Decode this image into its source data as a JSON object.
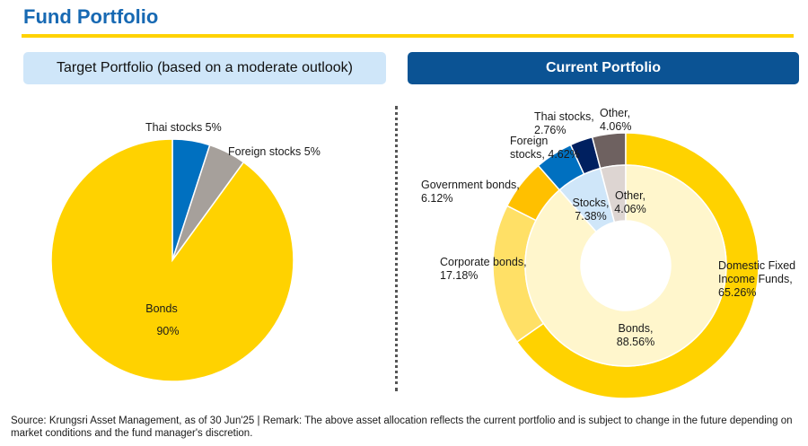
{
  "page": {
    "title": "Fund Portfolio",
    "target_header": "Target Portfolio (based on a moderate outlook)",
    "current_header": "Current Portfolio",
    "footnote": "Source: Krungsri Asset Management, as of 30 Jun'25 | Remark: The above asset allocation reflects the current portfolio and is subject to change in the future depending on market conditions and the fund manager's discretion."
  },
  "chart_data": [
    {
      "type": "pie",
      "title": "Target Portfolio (based on a moderate outlook)",
      "slices": [
        {
          "label": "Thai stocks",
          "value": 5,
          "display": "Thai stocks 5%",
          "color": "#0070c0"
        },
        {
          "label": "Foreign stocks",
          "value": 5,
          "display": "Foreign stocks 5%",
          "color": "#a6a09b"
        },
        {
          "label": "Bonds",
          "value": 90,
          "display": "Bonds",
          "display_value": "90%",
          "color": "#ffd200"
        }
      ]
    },
    {
      "type": "pie",
      "subtype": "nested-donut",
      "title": "Current Portfolio",
      "inner_ring": [
        {
          "label": "Stocks",
          "value": 7.38,
          "display": [
            "Stocks,",
            "7.38%"
          ],
          "color": "#cfe6f9"
        },
        {
          "label": "Other",
          "value": 4.06,
          "display": [
            "Other,",
            "4.06%"
          ],
          "color": "#ddd5d2"
        },
        {
          "label": "Bonds",
          "value": 88.56,
          "display": [
            "Bonds,",
            "88.56%"
          ],
          "color": "#fff6cc"
        }
      ],
      "outer_ring": [
        {
          "label": "Thai stocks",
          "value": 2.76,
          "display": [
            "Thai stocks,",
            "2.76%"
          ],
          "color": "#002060"
        },
        {
          "label": "Other",
          "value": 4.06,
          "display": [
            "Other,",
            "4.06%"
          ],
          "color": "#6e6160"
        },
        {
          "label": "Domestic Fixed Income Funds",
          "value": 65.26,
          "display": [
            "Domestic Fixed",
            "Income Funds,",
            "65.26%"
          ],
          "color": "#ffd200"
        },
        {
          "label": "Corporate bonds",
          "value": 17.18,
          "display": [
            "Corporate bonds,",
            "17.18%"
          ],
          "color": "#ffe066"
        },
        {
          "label": "Government bonds",
          "value": 6.12,
          "display": [
            "Government bonds,",
            "6.12%"
          ],
          "color": "#ffc000"
        },
        {
          "label": "Foreign stocks",
          "value": 4.62,
          "display": [
            "Foreign",
            "stocks, 4.62%"
          ],
          "color": "#0070c0"
        }
      ]
    }
  ]
}
